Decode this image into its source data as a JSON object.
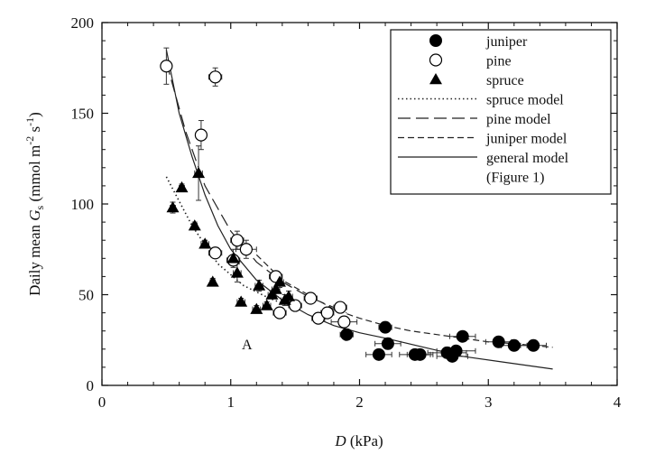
{
  "chart_data": {
    "type": "scatter",
    "xlabel_italic": "D",
    "xlabel_rest": " (kPa)",
    "ylabel_pre": "Daily mean ",
    "ylabel_italic": "G",
    "ylabel_sub": "s",
    "ylabel_mid": " (mmol m",
    "ylabel_sup1": "-2",
    "ylabel_mid2": " s",
    "ylabel_sup2": "-1",
    "ylabel_post": ")",
    "xlim": [
      0,
      4
    ],
    "ylim": [
      0,
      200
    ],
    "xticks": [
      "0",
      "1",
      "2",
      "3",
      "4"
    ],
    "yticks": [
      "0",
      "50",
      "100",
      "150",
      "200"
    ],
    "annotation": "A",
    "legend_position": "top-right",
    "legend": [
      {
        "label": "juniper",
        "symbol": "filled-circle"
      },
      {
        "label": "pine",
        "symbol": "open-circle"
      },
      {
        "label": "spruce",
        "symbol": "filled-triangle"
      },
      {
        "label": "spruce model",
        "symbol": "dotted-line"
      },
      {
        "label": "pine model",
        "symbol": "long-dash-line"
      },
      {
        "label": "juniper model",
        "symbol": "short-dash-line"
      },
      {
        "label": "general model",
        "symbol": "solid-line"
      },
      {
        "label": "(Figure 1)",
        "symbol": "none"
      }
    ],
    "series": [
      {
        "name": "juniper",
        "marker": "filled-circle",
        "points": [
          {
            "x": 1.9,
            "y": 28,
            "xerr": 0.05,
            "yerr": 2
          },
          {
            "x": 2.15,
            "y": 17,
            "xerr": 0.1,
            "yerr": 0
          },
          {
            "x": 2.2,
            "y": 32,
            "xerr": 0.05,
            "yerr": 0
          },
          {
            "x": 2.22,
            "y": 23,
            "xerr": 0.1,
            "yerr": 3
          },
          {
            "x": 2.43,
            "y": 17,
            "xerr": 0.12,
            "yerr": 0
          },
          {
            "x": 2.47,
            "y": 17,
            "xerr": 0.1,
            "yerr": 0
          },
          {
            "x": 2.68,
            "y": 18,
            "xerr": 0.15,
            "yerr": 3
          },
          {
            "x": 2.72,
            "y": 16,
            "xerr": 0.12,
            "yerr": 2
          },
          {
            "x": 2.75,
            "y": 19,
            "xerr": 0.15,
            "yerr": 0
          },
          {
            "x": 2.8,
            "y": 27,
            "xerr": 0.1,
            "yerr": 0
          },
          {
            "x": 3.08,
            "y": 24,
            "xerr": 0.1,
            "yerr": 0
          },
          {
            "x": 3.2,
            "y": 22,
            "xerr": 0.1,
            "yerr": 0
          },
          {
            "x": 3.35,
            "y": 22,
            "xerr": 0.1,
            "yerr": 0
          }
        ]
      },
      {
        "name": "pine",
        "marker": "open-circle",
        "points": [
          {
            "x": 0.5,
            "y": 176,
            "xerr": 0.02,
            "yerr": 10
          },
          {
            "x": 0.77,
            "y": 138,
            "xerr": 0.02,
            "yerr": 8
          },
          {
            "x": 0.88,
            "y": 170,
            "xerr": 0.05,
            "yerr": 5
          },
          {
            "x": 0.88,
            "y": 73,
            "xerr": 0.05,
            "yerr": 3
          },
          {
            "x": 1.02,
            "y": 69,
            "xerr": 0.05,
            "yerr": 3
          },
          {
            "x": 1.05,
            "y": 80,
            "xerr": 0.05,
            "yerr": 5
          },
          {
            "x": 1.12,
            "y": 75,
            "xerr": 0.08,
            "yerr": 5
          },
          {
            "x": 1.35,
            "y": 60,
            "xerr": 0.05,
            "yerr": 3
          },
          {
            "x": 1.38,
            "y": 40,
            "xerr": 0.05,
            "yerr": 3
          },
          {
            "x": 1.5,
            "y": 44,
            "xerr": 0.05,
            "yerr": 0
          },
          {
            "x": 1.62,
            "y": 48,
            "xerr": 0.05,
            "yerr": 0
          },
          {
            "x": 1.68,
            "y": 37,
            "xerr": 0.05,
            "yerr": 3
          },
          {
            "x": 1.75,
            "y": 40,
            "xerr": 0.05,
            "yerr": 0
          },
          {
            "x": 1.85,
            "y": 43,
            "xerr": 0.05,
            "yerr": 0
          },
          {
            "x": 1.88,
            "y": 35,
            "xerr": 0.1,
            "yerr": 3
          }
        ]
      },
      {
        "name": "spruce",
        "marker": "filled-triangle",
        "points": [
          {
            "x": 0.55,
            "y": 98,
            "xerr": 0.02,
            "yerr": 3
          },
          {
            "x": 0.62,
            "y": 109,
            "xerr": 0.02,
            "yerr": 2
          },
          {
            "x": 0.72,
            "y": 88,
            "xerr": 0.02,
            "yerr": 2
          },
          {
            "x": 0.75,
            "y": 117,
            "xerr": 0.03,
            "yerr": 15
          },
          {
            "x": 0.8,
            "y": 78,
            "xerr": 0.03,
            "yerr": 2
          },
          {
            "x": 0.86,
            "y": 57,
            "xerr": 0.02,
            "yerr": 2
          },
          {
            "x": 1.02,
            "y": 70,
            "xerr": 0.03,
            "yerr": 5
          },
          {
            "x": 1.05,
            "y": 62,
            "xerr": 0.03,
            "yerr": 5
          },
          {
            "x": 1.08,
            "y": 46,
            "xerr": 0.03,
            "yerr": 2
          },
          {
            "x": 1.2,
            "y": 42,
            "xerr": 0.03,
            "yerr": 2
          },
          {
            "x": 1.22,
            "y": 55,
            "xerr": 0.03,
            "yerr": 3
          },
          {
            "x": 1.28,
            "y": 44,
            "xerr": 0.03,
            "yerr": 2
          },
          {
            "x": 1.32,
            "y": 50,
            "xerr": 0.03,
            "yerr": 2
          },
          {
            "x": 1.35,
            "y": 53,
            "xerr": 0.03,
            "yerr": 4
          },
          {
            "x": 1.38,
            "y": 57,
            "xerr": 0.03,
            "yerr": 3
          },
          {
            "x": 1.42,
            "y": 47,
            "xerr": 0.03,
            "yerr": 3
          },
          {
            "x": 1.45,
            "y": 49,
            "xerr": 0.03,
            "yerr": 3
          }
        ]
      }
    ],
    "models": [
      {
        "name": "spruce model",
        "style": "dotted",
        "x": [
          0.5,
          0.7,
          0.9,
          1.1,
          1.3,
          1.45
        ],
        "y": [
          115,
          88,
          67,
          55,
          48,
          44
        ]
      },
      {
        "name": "pine model",
        "style": "long-dash",
        "x": [
          0.5,
          0.65,
          0.8,
          1.0,
          1.2,
          1.4,
          1.6,
          1.8,
          1.9
        ],
        "y": [
          178,
          140,
          110,
          85,
          68,
          57,
          49,
          43,
          40
        ]
      },
      {
        "name": "juniper model",
        "style": "short-dash",
        "x": [
          1.2,
          1.4,
          1.6,
          1.8,
          2.0,
          2.2,
          2.4,
          2.6,
          2.8,
          3.0,
          3.2,
          3.5
        ],
        "y": [
          72,
          58,
          50,
          42,
          37,
          33,
          30,
          28,
          26,
          24,
          23,
          21
        ]
      },
      {
        "name": "general model",
        "style": "solid",
        "x": [
          0.5,
          0.6,
          0.7,
          0.8,
          0.9,
          1.0,
          1.2,
          1.4,
          1.6,
          1.8,
          2.0,
          2.2,
          2.5,
          2.8,
          3.1,
          3.5
        ],
        "y": [
          185,
          150,
          126,
          105,
          88,
          75,
          58,
          47,
          39,
          33,
          29,
          26,
          21,
          16,
          13,
          9
        ]
      }
    ]
  }
}
